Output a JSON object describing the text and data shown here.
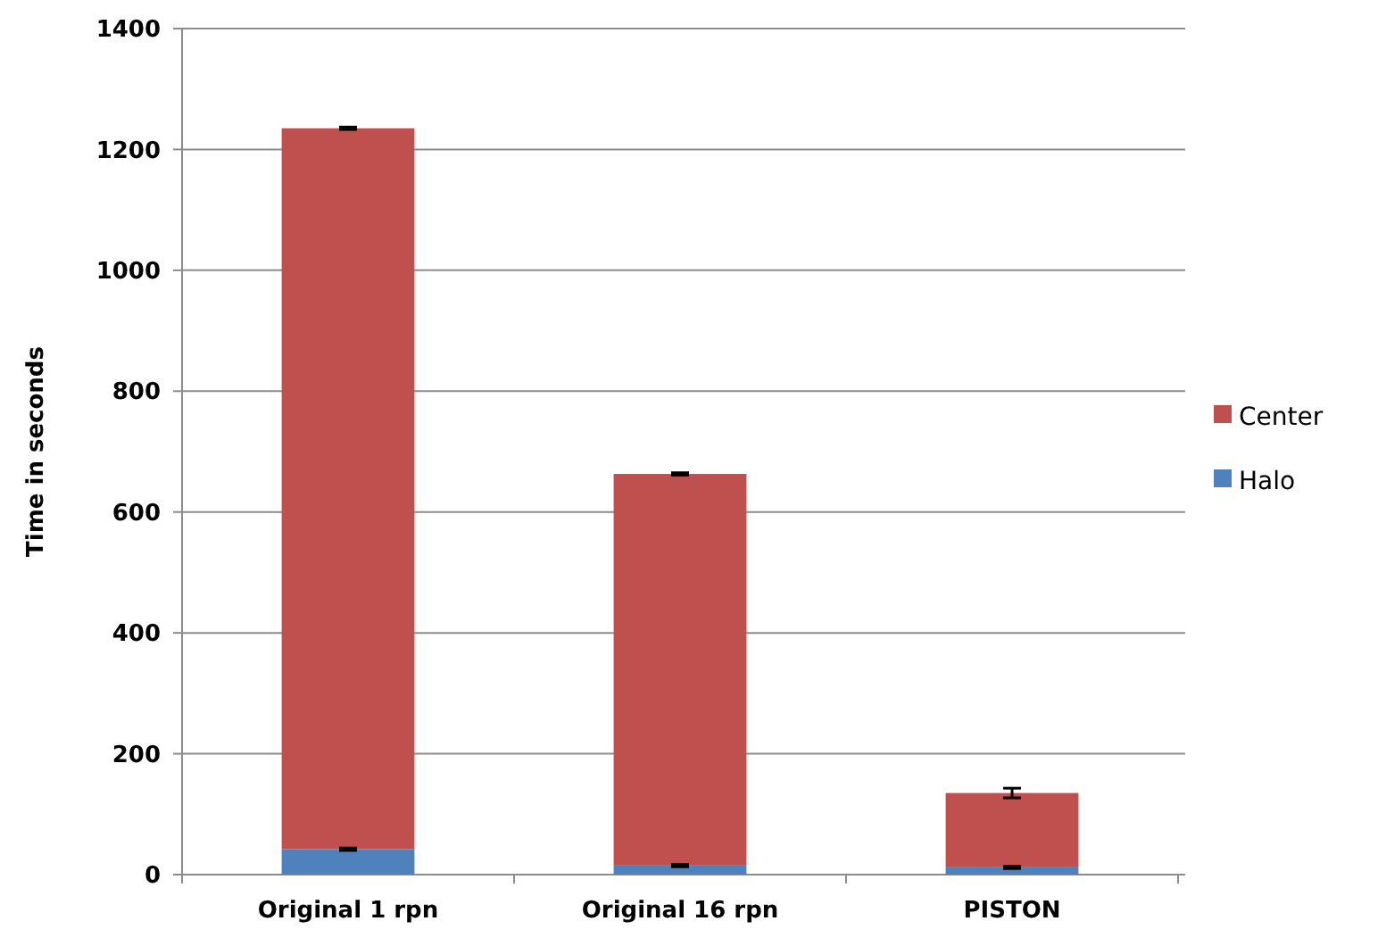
{
  "chart_data": {
    "type": "bar",
    "stacked": true,
    "ylabel": "Time in seconds",
    "categories": [
      "Original 1 rpn",
      "Original 16 rpn",
      "PISTON"
    ],
    "series": [
      {
        "name": "Halo",
        "color": "#4f81bd",
        "values": [
          42,
          15,
          12
        ],
        "errors": [
          2,
          2,
          2
        ]
      },
      {
        "name": "Center",
        "color": "#c0504d",
        "values": [
          1193,
          648,
          123
        ],
        "errors": [
          2,
          2,
          8
        ]
      }
    ],
    "ylim": [
      0,
      1400
    ],
    "yticks": [
      0,
      200,
      400,
      600,
      800,
      1000,
      1200,
      1400
    ],
    "grid": "y",
    "legend": "right"
  }
}
